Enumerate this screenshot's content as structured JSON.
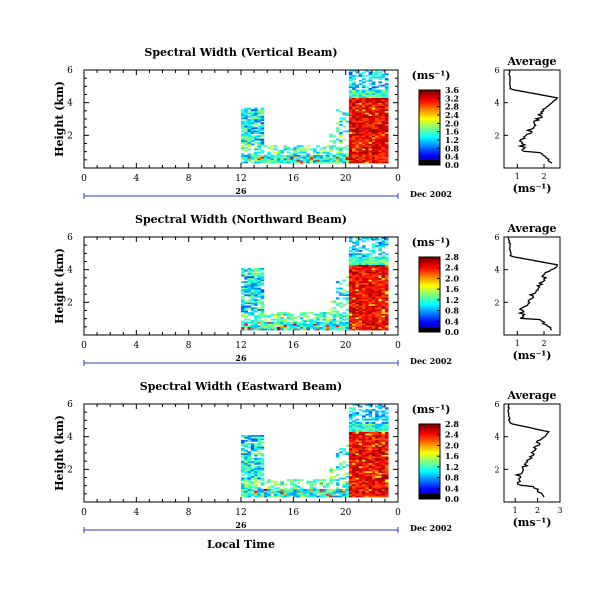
{
  "figure": {
    "date_label": "Dec 2002",
    "xlabel": "Local Time",
    "day_marker": "26",
    "average_title": "Average",
    "unit_label": "(ms⁻¹)",
    "height_label": "Height (km)"
  },
  "chart_data": [
    {
      "type": "heatmap",
      "title": "Spectral Width (Vertical Beam)",
      "xlabel": "Local Time",
      "ylabel": "Height (km)",
      "xlim": [
        0,
        24
      ],
      "x_ticks": [
        "0",
        "4",
        "8",
        "12",
        "16",
        "20",
        "0"
      ],
      "ylim": [
        0,
        6
      ],
      "y_ticks": [
        "2",
        "4",
        "6"
      ],
      "colorbar": {
        "label": "(ms⁻¹)",
        "range": [
          0,
          3.6
        ],
        "ticks": [
          "0.0",
          "0.4",
          "0.8",
          "1.2",
          "1.6",
          "2.0",
          "2.4",
          "2.8",
          "3.2",
          "3.6"
        ]
      },
      "average_profile": {
        "title": "Average",
        "xlabel": "(ms⁻¹)",
        "x_ticks": [
          "1",
          "2"
        ],
        "y_ticks": [
          "2",
          "4",
          "6"
        ]
      }
    },
    {
      "type": "heatmap",
      "title": "Spectral Width (Northward Beam)",
      "xlabel": "Local Time",
      "ylabel": "Height (km)",
      "xlim": [
        0,
        24
      ],
      "x_ticks": [
        "0",
        "4",
        "8",
        "12",
        "16",
        "20",
        "0"
      ],
      "ylim": [
        0,
        6
      ],
      "y_ticks": [
        "2",
        "4",
        "6"
      ],
      "colorbar": {
        "label": "(ms⁻¹)",
        "range": [
          0,
          2.8
        ],
        "ticks": [
          "0.0",
          "0.4",
          "0.8",
          "1.2",
          "1.6",
          "2.0",
          "2.4",
          "2.8"
        ]
      },
      "average_profile": {
        "title": "Average",
        "xlabel": "(ms⁻¹)",
        "x_ticks": [
          "1",
          "2"
        ],
        "y_ticks": [
          "2",
          "4",
          "6"
        ]
      }
    },
    {
      "type": "heatmap",
      "title": "Spectral Width (Eastward Beam)",
      "xlabel": "Local Time",
      "ylabel": "Height (km)",
      "xlim": [
        0,
        24
      ],
      "x_ticks": [
        "0",
        "4",
        "8",
        "12",
        "16",
        "20",
        "0"
      ],
      "ylim": [
        0,
        6
      ],
      "y_ticks": [
        "2",
        "4",
        "6"
      ],
      "colorbar": {
        "label": "(ms⁻¹)",
        "range": [
          0,
          2.8
        ],
        "ticks": [
          "0.0",
          "0.4",
          "0.8",
          "1.2",
          "1.6",
          "2.0",
          "2.4",
          "2.8"
        ]
      },
      "average_profile": {
        "title": "Average",
        "xlabel": "(ms⁻¹)",
        "x_ticks": [
          "1",
          "2",
          "3"
        ],
        "y_ticks": [
          "2",
          "4",
          "6"
        ]
      }
    }
  ]
}
